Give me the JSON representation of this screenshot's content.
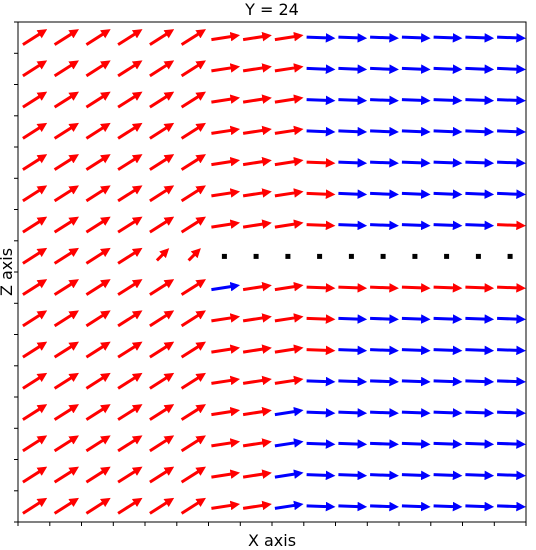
{
  "chart_data": {
    "type": "quiver",
    "title": "Y = 24",
    "xlabel": "X axis",
    "ylabel": "Z axis",
    "xlim": [
      0,
      16
    ],
    "ylim": [
      0,
      16
    ],
    "tick_labels_shown": false,
    "grid": false,
    "legend": "none",
    "colors": {
      "red": "#ff0000",
      "blue": "#0000ff",
      "dot": "#000000"
    },
    "columns": 16,
    "row_values": [
      15.5,
      14.5,
      13.5,
      12.5,
      11.5,
      10.5,
      9.5,
      8.5,
      7.5,
      6.5,
      5.5,
      4.5,
      3.5,
      2.5,
      1.5,
      0.5
    ],
    "row_color_patterns": [
      "RRRRRRRRRBBBBBBB",
      "RRRRRRRRRBBBBBBB",
      "RRRRRRRRRBBBBBBB",
      "RRRRRRRRRBBBBBBB",
      "RRRRRRRRRRBBBBBB",
      "RRRRRRRRRRBBBBBB",
      "RRRRRRRRRRBBBBBR",
      "RRRRRRRRRRRRRRRR",
      "RRRRRRBRRRRRRRRR",
      "RRRRRRRRRRBBBBBB",
      "RRRRRRRRRRBBBBBB",
      "RRRRRRRRRBBBBBBB",
      "RRRRRRRRBBBBBBBB",
      "RRRRRRRRBBBBBBBB",
      "RRRRRRRRBBBBBBBB",
      "RRRRRRRRBBBBBBBB"
    ],
    "dot_markers": {
      "row_value": 8.5,
      "x_values": [
        6.5,
        7.5,
        8.5,
        9.5,
        10.5,
        11.5,
        12.5,
        13.5,
        14.5,
        15.5
      ]
    }
  }
}
